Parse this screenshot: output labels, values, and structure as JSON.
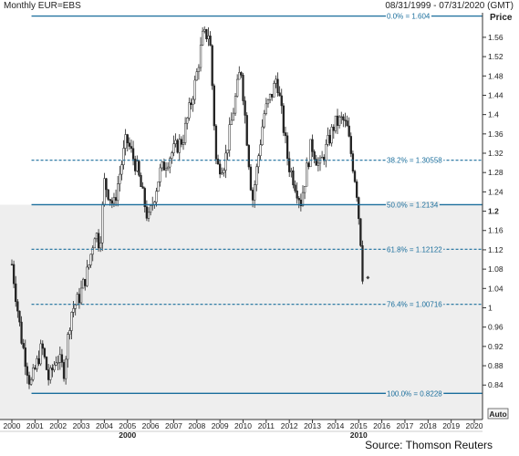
{
  "header": {
    "title": "Monthly EUR=EBS",
    "range": "08/31/1999 - 07/31/2020 (GMT)"
  },
  "source": "Source: Thomson Reuters",
  "colors": {
    "candle_up": "#ffffff",
    "candle_down": "#222222",
    "fib_line": "#1a6e9c",
    "fib_label": "#1a6e9c",
    "shade": "#eeeeee",
    "axis": "#333333"
  },
  "chart_data": {
    "type": "candlestick",
    "title": "Monthly EUR=EBS",
    "ylabel": "Price",
    "ylim": [
      0.8,
      1.61
    ],
    "xlim": [
      2000.0,
      2020.3
    ],
    "y_ticks": [
      0.84,
      0.88,
      0.92,
      0.96,
      1.0,
      1.04,
      1.08,
      1.12,
      1.16,
      1.2,
      1.24,
      1.28,
      1.32,
      1.36,
      1.4,
      1.44,
      1.48,
      1.52,
      1.56
    ],
    "y_tick_labels": [
      "0.84",
      "0.88",
      "0.92",
      "0.96",
      "1",
      "1.04",
      "1.08",
      "1.12",
      "1.16",
      "1.2",
      "1.24",
      "1.28",
      "1.32",
      "1.36",
      "1.4",
      "1.44",
      "1.48",
      "1.52",
      "1.56"
    ],
    "y_bold_tick": "1.2",
    "x_ticks": [
      2000,
      2001,
      2002,
      2003,
      2004,
      2005,
      2006,
      2007,
      2008,
      2009,
      2010,
      2011,
      2012,
      2013,
      2014,
      2015,
      2016,
      2017,
      2018,
      2019,
      2020
    ],
    "x_tick_labels": [
      "2000",
      "2001",
      "2002",
      "2003",
      "2004",
      "2005",
      "2006",
      "2007",
      "2008",
      "2009",
      "2010",
      "2011",
      "2012",
      "2013",
      "2014",
      "2015",
      "2016",
      "2017",
      "2018",
      "2019",
      "2020"
    ],
    "x_sub_labels": [
      {
        "x": 2005.0,
        "label": "2000"
      },
      {
        "x": 2015.0,
        "label": "2010"
      }
    ],
    "auto_label": "Auto",
    "fib_levels": [
      {
        "label": "0.0% = 1.604",
        "value": 1.604,
        "style": "solid"
      },
      {
        "label": "38.2% = 1.30558",
        "value": 1.30558,
        "style": "dashed"
      },
      {
        "label": "50.0% = 1.2134",
        "value": 1.2134,
        "style": "solid"
      },
      {
        "label": "61.8% = 1.12122",
        "value": 1.12122,
        "style": "dashed"
      },
      {
        "label": "76.4% = 1.00716",
        "value": 1.00716,
        "style": "dashed"
      },
      {
        "label": "100.0% = 0.8228",
        "value": 0.8228,
        "style": "solid"
      }
    ],
    "fib_x_range": [
      2000.85,
      2020.3
    ],
    "last_price": 1.055,
    "price_path": [
      [
        2000.0,
        1.09
      ],
      [
        2000.4,
        0.94
      ],
      [
        2000.8,
        0.84
      ],
      [
        2001.3,
        0.92
      ],
      [
        2001.6,
        0.85
      ],
      [
        2001.95,
        0.9
      ],
      [
        2002.25,
        0.87
      ],
      [
        2002.55,
        0.99
      ],
      [
        2002.9,
        1.02
      ],
      [
        2003.3,
        1.08
      ],
      [
        2003.6,
        1.16
      ],
      [
        2003.8,
        1.13
      ],
      [
        2004.0,
        1.26
      ],
      [
        2004.4,
        1.21
      ],
      [
        2004.95,
        1.35
      ],
      [
        2005.4,
        1.29
      ],
      [
        2005.9,
        1.18
      ],
      [
        2006.4,
        1.28
      ],
      [
        2006.9,
        1.32
      ],
      [
        2007.4,
        1.35
      ],
      [
        2007.95,
        1.47
      ],
      [
        2008.25,
        1.56
      ],
      [
        2008.55,
        1.57
      ],
      [
        2008.85,
        1.29
      ],
      [
        2009.2,
        1.3
      ],
      [
        2009.9,
        1.5
      ],
      [
        2010.4,
        1.22
      ],
      [
        2010.9,
        1.4
      ],
      [
        2011.3,
        1.45
      ],
      [
        2011.45,
        1.48
      ],
      [
        2011.95,
        1.3
      ],
      [
        2012.5,
        1.22
      ],
      [
        2012.95,
        1.34
      ],
      [
        2013.3,
        1.29
      ],
      [
        2013.95,
        1.38
      ],
      [
        2014.3,
        1.39
      ],
      [
        2014.5,
        1.37
      ],
      [
        2014.9,
        1.25
      ],
      [
        2015.1,
        1.13
      ],
      [
        2015.2,
        1.06
      ]
    ]
  }
}
